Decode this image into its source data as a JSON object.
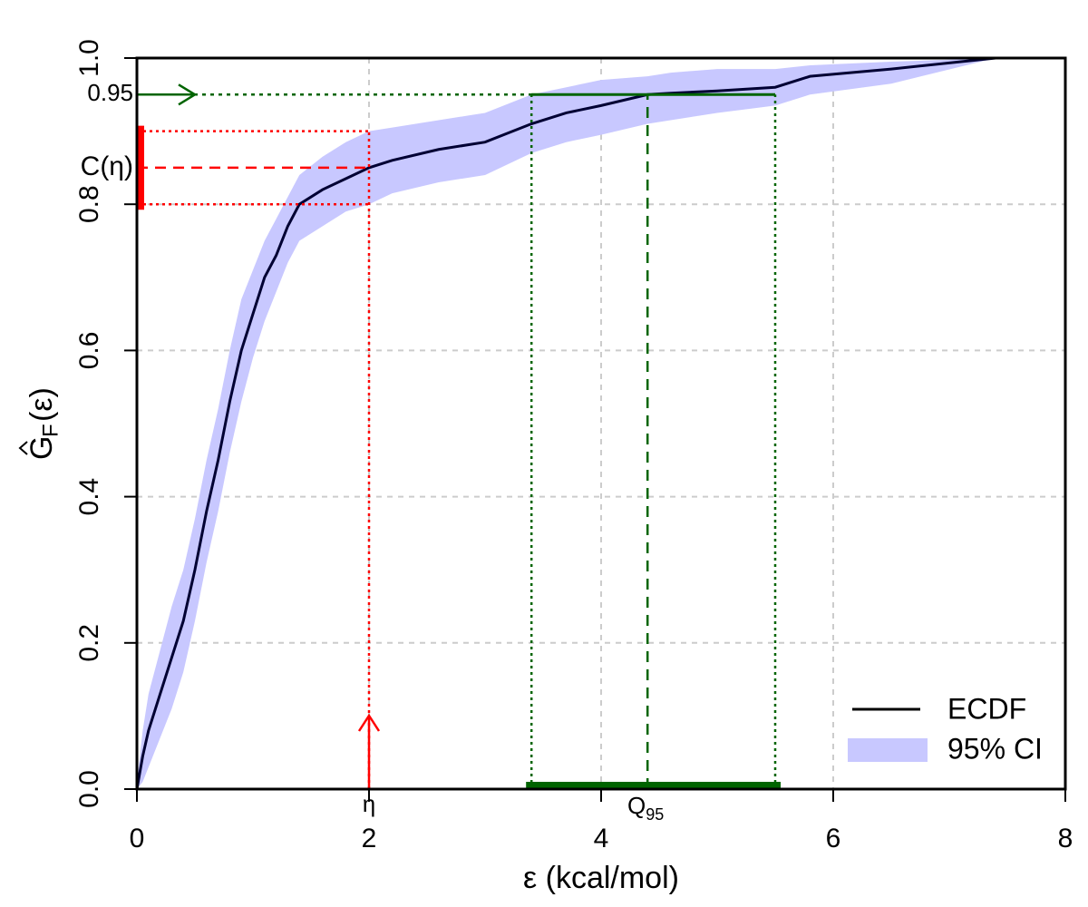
{
  "chart_data": {
    "type": "ecdf",
    "x_label": "ε (kcal/mol)",
    "y_label": {
      "main": "G",
      "sub": "F",
      "rest": "(ε)"
    },
    "xlim": [
      0,
      8
    ],
    "ylim": [
      0,
      1
    ],
    "xticks": [
      0,
      2,
      4,
      6,
      8
    ],
    "yticks": [
      {
        "value": 0,
        "label": "0.0"
      },
      0.2,
      0.4,
      0.6,
      0.8,
      {
        "value": 1,
        "label": "1.0"
      }
    ],
    "grid": true,
    "legend": "bottom-right",
    "series": [
      {
        "name": "ECDF",
        "color": "#000033",
        "x": [
          0,
          0.05,
          0.1,
          0.2,
          0.3,
          0.4,
          0.5,
          0.6,
          0.7,
          0.8,
          0.9,
          1.0,
          1.1,
          1.2,
          1.3,
          1.4,
          1.6,
          1.8,
          2.0,
          2.2,
          2.6,
          3.0,
          3.4,
          3.7,
          4.0,
          4.4,
          4.6,
          5.0,
          5.5,
          5.8,
          6.5,
          7.4
        ],
        "y": [
          0,
          0.045,
          0.08,
          0.13,
          0.18,
          0.23,
          0.3,
          0.38,
          0.45,
          0.53,
          0.6,
          0.65,
          0.7,
          0.73,
          0.77,
          0.8,
          0.82,
          0.835,
          0.85,
          0.86,
          0.875,
          0.885,
          0.91,
          0.925,
          0.935,
          0.95,
          0.952,
          0.955,
          0.96,
          0.975,
          0.985,
          1.0
        ]
      }
    ],
    "band": {
      "name": "95% CI",
      "color": "#c8c8ff",
      "x": [
        0,
        0.05,
        0.1,
        0.2,
        0.3,
        0.4,
        0.5,
        0.6,
        0.7,
        0.8,
        0.9,
        1.0,
        1.1,
        1.2,
        1.3,
        1.4,
        1.6,
        1.8,
        2.0,
        2.2,
        2.6,
        3.0,
        3.4,
        3.7,
        4.0,
        4.4,
        4.6,
        5.0,
        5.5,
        5.8,
        6.5,
        7.4
      ],
      "lower": [
        0,
        0.01,
        0.03,
        0.07,
        0.11,
        0.16,
        0.23,
        0.31,
        0.38,
        0.46,
        0.53,
        0.59,
        0.64,
        0.68,
        0.72,
        0.75,
        0.77,
        0.79,
        0.8,
        0.815,
        0.83,
        0.84,
        0.87,
        0.885,
        0.895,
        0.91,
        0.915,
        0.925,
        0.935,
        0.95,
        0.965,
        1.0
      ],
      "upper": [
        0.01,
        0.08,
        0.13,
        0.19,
        0.25,
        0.3,
        0.37,
        0.45,
        0.52,
        0.6,
        0.67,
        0.71,
        0.75,
        0.78,
        0.81,
        0.84,
        0.865,
        0.885,
        0.9,
        0.905,
        0.915,
        0.925,
        0.95,
        0.96,
        0.97,
        0.975,
        0.98,
        0.985,
        0.985,
        0.99,
        0.995,
        1.0
      ]
    },
    "annotations": {
      "eta": {
        "label": "η",
        "value": 2,
        "color": "#ff0000"
      },
      "c_eta": {
        "label": "C(η)",
        "lower": 0.8,
        "value": 0.85,
        "upper": 0.9,
        "color": "#ff0000"
      },
      "q95": {
        "label": "Q",
        "subscript": "95",
        "level": 0.95,
        "lower": 3.4,
        "value": 4.4,
        "upper": 5.5,
        "color": "#006400"
      }
    }
  }
}
